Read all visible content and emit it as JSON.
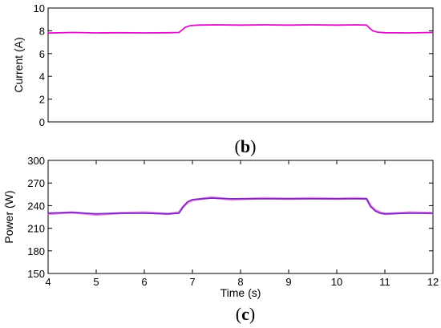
{
  "chart_data": [
    {
      "type": "line",
      "title": "",
      "xlabel": "",
      "ylabel": "Current (A)",
      "ylim": [
        0,
        10
      ],
      "xlim": [
        4,
        12
      ],
      "yticks": [
        "0",
        "2",
        "4",
        "6",
        "8",
        "10"
      ],
      "xticks": [],
      "grid": false,
      "caption": {
        "open": "(",
        "letter": "b",
        "close": ")"
      },
      "series": [
        {
          "color": "#e010c8",
          "x": [
            4.0,
            4.5,
            5.0,
            5.5,
            6.0,
            6.5,
            6.72,
            6.78,
            6.85,
            6.95,
            7.1,
            7.5,
            8.0,
            8.5,
            9.0,
            9.5,
            10.0,
            10.4,
            10.62,
            10.68,
            10.75,
            10.85,
            11.0,
            11.5,
            12.0
          ],
          "y": [
            7.8,
            7.85,
            7.82,
            7.83,
            7.82,
            7.83,
            7.85,
            8.05,
            8.3,
            8.45,
            8.5,
            8.52,
            8.5,
            8.52,
            8.5,
            8.52,
            8.5,
            8.52,
            8.5,
            8.25,
            8.0,
            7.88,
            7.83,
            7.82,
            7.85
          ]
        }
      ]
    },
    {
      "type": "line",
      "title": "",
      "xlabel": "Time (s)",
      "ylabel": "Power (W)",
      "ylim": [
        150,
        300
      ],
      "xlim": [
        4,
        12
      ],
      "yticks": [
        "150",
        "180",
        "210",
        "240",
        "270",
        "300"
      ],
      "xticks": [
        "4",
        "5",
        "6",
        "7",
        "8",
        "9",
        "10",
        "11",
        "12"
      ],
      "grid": false,
      "caption": {
        "open": "(",
        "letter": "c",
        "close": ")"
      },
      "series": [
        {
          "color": "#ee8fee",
          "x": [
            4.0,
            4.5,
            5.0,
            5.5,
            6.0,
            6.5,
            6.72,
            6.8,
            6.9,
            7.0,
            7.2,
            7.4,
            7.8,
            8.5,
            9.0,
            9.5,
            10.0,
            10.4,
            10.62,
            10.7,
            10.8,
            10.9,
            11.0,
            11.5,
            12.0
          ],
          "y": [
            229,
            231,
            228,
            230,
            231,
            229,
            231,
            238,
            244,
            247,
            249,
            251,
            248,
            250,
            249,
            250,
            249,
            250,
            249,
            240,
            234,
            231,
            229,
            231,
            230
          ]
        },
        {
          "color": "#7a2ab8",
          "x": [
            4.0,
            4.5,
            5.0,
            5.5,
            6.0,
            6.5,
            6.72,
            6.8,
            6.9,
            7.0,
            7.2,
            7.4,
            7.8,
            8.5,
            9.0,
            9.5,
            10.0,
            10.4,
            10.62,
            10.7,
            10.8,
            10.9,
            11.0,
            11.5,
            12.0
          ],
          "y": [
            230,
            231,
            229,
            230,
            230,
            229,
            230,
            238,
            245,
            248,
            249,
            250,
            249,
            249,
            249,
            249,
            249,
            249,
            249,
            239,
            233,
            230,
            229,
            230,
            230
          ]
        }
      ]
    }
  ]
}
